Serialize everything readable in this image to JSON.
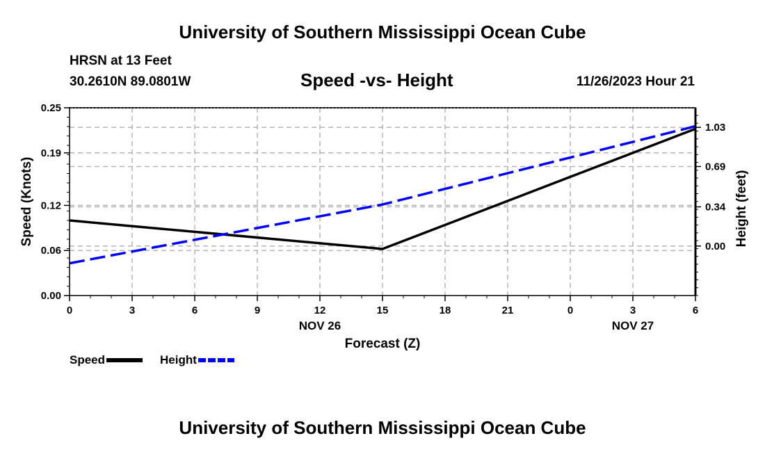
{
  "header": {
    "title": "University of Southern Mississippi Ocean Cube",
    "station": "HRSN at 13 Feet",
    "coords": "30.2610N  89.0801W",
    "subtitle": "Speed -vs- Height",
    "datetime": "11/26/2023 Hour 21"
  },
  "footer": {
    "title": "University of Southern Mississippi Ocean Cube"
  },
  "legend": {
    "speed": "Speed",
    "height": "Height"
  },
  "colors": {
    "speed": "#000000",
    "height": "#0000ff",
    "grid": "#b4b4b4"
  },
  "chart_data": {
    "type": "line",
    "title": "Speed -vs- Height",
    "xlabel": "Forecast (Z)",
    "ylabel": "Speed (Knots)",
    "y2label": "Height (feet)",
    "x": [
      0,
      3,
      6,
      9,
      12,
      15,
      18,
      21,
      24,
      27,
      30
    ],
    "xticklabels": [
      "0",
      "3",
      "6",
      "9",
      "12",
      "15",
      "18",
      "21",
      "0",
      "3",
      "6"
    ],
    "date_labels": [
      {
        "x": 12,
        "label": "NOV 26"
      },
      {
        "x": 27,
        "label": "NOV 27"
      }
    ],
    "xlim": [
      0,
      30
    ],
    "ylim": [
      0,
      0.25
    ],
    "yticks": [
      0,
      0.06,
      0.12,
      0.19,
      0.25
    ],
    "yticklabels": [
      "0.00",
      "0.06",
      "0.12",
      "0.19",
      "0.25"
    ],
    "y2lim": [
      -0.43,
      1.2
    ],
    "y2ticks": [
      0,
      0.34,
      0.69,
      1.03
    ],
    "y2ticklabels": [
      "0.00",
      "0.34",
      "0.69",
      "1.03"
    ],
    "grid": true,
    "series": [
      {
        "name": "Speed",
        "axis": "left",
        "style": "solid",
        "color": "#000000",
        "points": [
          [
            0,
            0.1
          ],
          [
            15,
            0.062
          ],
          [
            30,
            0.222
          ]
        ]
      },
      {
        "name": "Height",
        "axis": "right",
        "style": "dashed",
        "color": "#0000ff",
        "points": [
          [
            0,
            -0.15
          ],
          [
            15,
            0.36
          ],
          [
            30,
            1.04
          ]
        ]
      }
    ]
  }
}
